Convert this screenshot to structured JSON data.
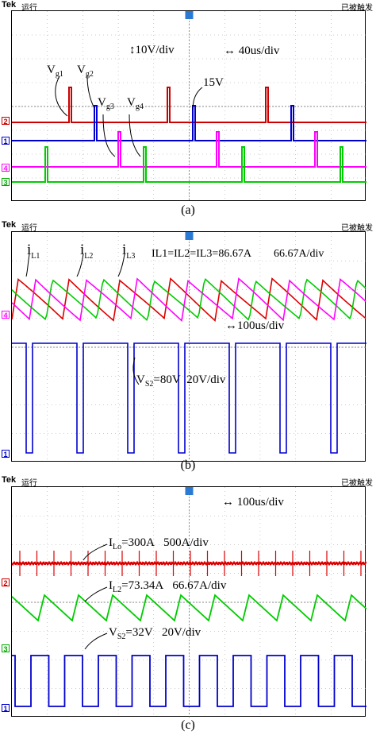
{
  "header": {
    "brand": "Tek",
    "status": "运行",
    "trigger_status": "已被触发"
  },
  "panels": [
    {
      "caption": "(a)",
      "annotations": {
        "vg1": "V",
        "vg1_sub": "g1",
        "vg2": "V",
        "vg2_sub": "g2",
        "vg3": "V",
        "vg3_sub": "g3",
        "vg4": "V",
        "vg4_sub": "g4",
        "vscale": "10V/div",
        "tscale": "40us/div",
        "amp": "15V"
      },
      "channel_markers": [
        "2",
        "1",
        "4",
        "3"
      ]
    },
    {
      "caption": "(b)",
      "annotations": {
        "il1": "i",
        "il1_sub": "L1",
        "il2": "i",
        "il2_sub": "L2",
        "il3": "i",
        "il3_sub": "L3",
        "currents": "I",
        "currents_full": "IL1=IL2=IL3=86.67A",
        "iscale": "66.67A/div",
        "tscale": "100us/div",
        "vs2": "V",
        "vs2_sub": "S2",
        "vs2_value": "=80V",
        "vscale": "20V/div"
      },
      "channel_markers": [
        "4",
        "1"
      ]
    },
    {
      "caption": "(c)",
      "annotations": {
        "tscale": "100us/div",
        "ilo": "I",
        "ilo_sub": "Lo",
        "ilo_value": "=300A",
        "ilo_scale": "500A/div",
        "il2": "I",
        "il2_sub": "L2",
        "il2_value": "=73.34A",
        "il2_scale": "66.67A/div",
        "vs2": "V",
        "vs2_sub": "S2",
        "vs2_value": "=32V",
        "vs2_scale": "20V/div"
      },
      "channel_markers": [
        "2",
        "3",
        "1"
      ]
    }
  ],
  "chart_data": [
    {
      "type": "line",
      "series": [
        {
          "name": "Vg1",
          "color": "#cc0000",
          "baseline_div": 3.3,
          "pulse_amp_V": 15
        },
        {
          "name": "Vg2",
          "color": "#0000cc",
          "baseline_div": 2.6
        },
        {
          "name": "Vg3",
          "color": "#ff00ff",
          "baseline_div": 1.6
        },
        {
          "name": "Vg4",
          "color": "#00cc00",
          "baseline_div": 1.0
        }
      ],
      "vertical_scale": "10V/div",
      "time_scale": "40us/div",
      "grid": true
    },
    {
      "type": "line",
      "series": [
        {
          "name": "iL1",
          "color": "#dd0000",
          "avg_A": 86.67
        },
        {
          "name": "iL2",
          "color": "#00cc00",
          "avg_A": 86.67
        },
        {
          "name": "iL3",
          "color": "#ff00ff",
          "avg_A": 86.67
        },
        {
          "name": "VS2",
          "color": "#0000cc",
          "value_V": 80
        }
      ],
      "current_scale": "66.67A/div",
      "voltage_scale": "20V/div",
      "time_scale": "100us/div",
      "grid": true
    },
    {
      "type": "line",
      "series": [
        {
          "name": "ILo",
          "color": "#dd0000",
          "value_A": 300
        },
        {
          "name": "IL2",
          "color": "#00cc00",
          "value_A": 73.34
        },
        {
          "name": "VS2",
          "color": "#0000cc",
          "value_V": 32
        }
      ],
      "scales": [
        "500A/div",
        "66.67A/div",
        "20V/div"
      ],
      "time_scale": "100us/div",
      "grid": true
    }
  ]
}
